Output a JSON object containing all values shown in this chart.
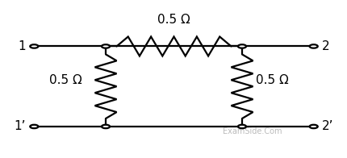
{
  "background_color": "#ffffff",
  "line_color": "#000000",
  "node_color": "#ffffff",
  "node_edge_color": "#000000",
  "line_width": 1.6,
  "font_size": 11,
  "watermark_text": "ExamSide.Com",
  "watermark_color": "#bbbbbb",
  "watermark_fontsize": 7,
  "labels": {
    "port1_top": "1",
    "port1_bot": "1’",
    "port2_top": "2",
    "port2_bot": "2’",
    "series_R": "0.5 Ω",
    "shunt_R_left": "0.5 Ω",
    "shunt_R_right": "0.5 Ω"
  },
  "xL": 0.09,
  "xNL": 0.3,
  "xNR": 0.7,
  "xR": 0.91,
  "yT": 0.72,
  "yB": 0.18,
  "node_r": 0.012
}
